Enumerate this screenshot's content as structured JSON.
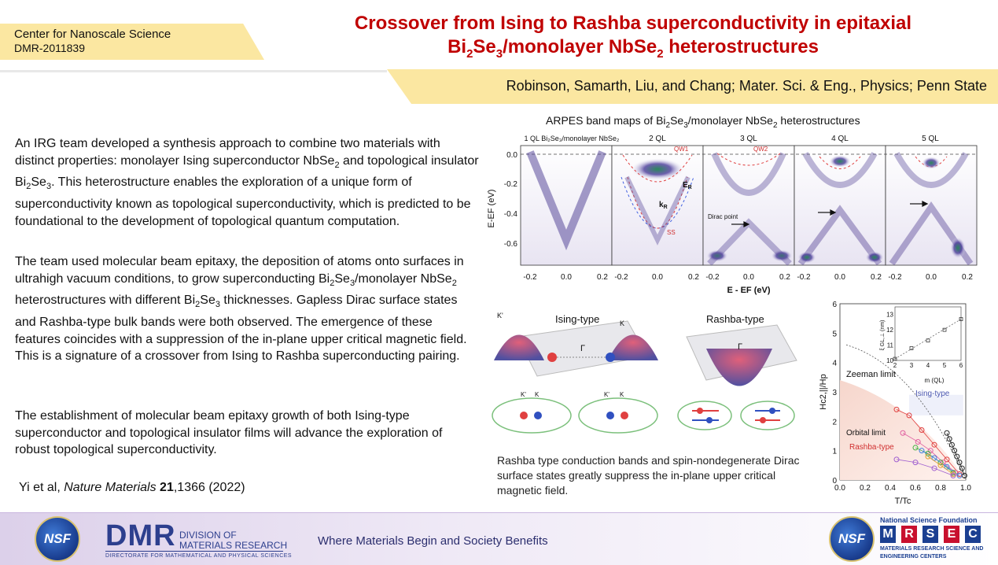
{
  "header": {
    "center_line1": "Center for Nanoscale Science",
    "center_line2": "DMR-2011839",
    "title_line1": "Crossover from Ising to Rashba superconductivity in epitaxial",
    "title_line2": {
      "a": "Bi",
      "s1": "2",
      "b": "Se",
      "s2": "3",
      "c": "/monolayer NbSe",
      "s3": "2",
      "d": " heterostructures"
    },
    "authors": "Robinson, Samarth, Liu, and Chang; Mater. Sci. & Eng., Physics; Penn State"
  },
  "body": {
    "para1": {
      "t1": "An IRG team developed a synthesis approach to combine two materials with distinct properties: monolayer Ising superconductor NbSe",
      "s1": "2",
      "t2": " and topological insulator Bi",
      "s2": "2",
      "t3": "Se",
      "s3": "3",
      "t4": ". This heterostructure enables the exploration of a unique form of superconductivity known as topological superconductivity, which is predicted to be foundational to the development of topological quantum computation."
    },
    "para2": {
      "t1": "The team used molecular beam epitaxy, the deposition of atoms onto surfaces in ultrahigh vacuum conditions, to grow superconducting Bi",
      "s1": "2",
      "t2": "Se",
      "s2": "3",
      "t3": "/monolayer NbSe",
      "s3": "2",
      "t4": " heterostructures  with different Bi",
      "s4": "2",
      "t5": "Se",
      "s5": "3",
      "t6": " thicknesses. Gapless Dirac surface states and Rashba-type bulk bands were both observed. The emergence of these features coincides with a suppression of the in-plane upper critical magnetic field. This is a signature of a crossover from Ising to Rashba superconducting pairing."
    },
    "para3": "The establishment of molecular beam epitaxy growth of both Ising-type superconductor and topological insulator films will advance the exploration of robust topological superconductivity.",
    "citation": {
      "authors": "Yi et al, ",
      "journal": "Nature Materials",
      "volume": "21",
      "rest": ",1366 (2022)"
    }
  },
  "arpes": {
    "title": {
      "a": "ARPES band maps of Bi",
      "s1": "2",
      "b": "Se",
      "s2": "3",
      "c": "/monolayer NbSe",
      "s3": "2",
      "d": " heterostructures"
    },
    "panels": [
      "1 QL Bi₂Se₃/monolayer NbSe₂",
      "2 QL",
      "3 QL",
      "4 QL",
      "5 QL"
    ],
    "ylabel": "E-EF (eV)",
    "yticks": [
      "0.0",
      "-0.2",
      "-0.4",
      "-0.6"
    ],
    "xticks": [
      "-0.2",
      "0.0",
      "0.2"
    ],
    "xlabel": "E - EF (eV)",
    "annotations": {
      "qw1": "QW1",
      "qw2": "QW2",
      "er": "E",
      "er_sub": "R",
      "kr": "k",
      "kr_sub": "R",
      "ss": "SS",
      "dirac": "Dirac point"
    }
  },
  "schematic": {
    "ising_label": "Ising-type",
    "rashba_label": "Rashba-type",
    "k_prime": "K'",
    "k": "K",
    "gamma": "Γ"
  },
  "caption": "Rashba type conduction bands and spin-nondegenerate Dirac surface states greatly suppress the in-plane upper critical magnetic field.",
  "chart_data": {
    "type": "scatter",
    "xlabel": "T/Tc",
    "ylabel": "Hc2,||/Hp",
    "xlim": [
      0.0,
      1.0
    ],
    "ylim": [
      0,
      6
    ],
    "xticks": [
      "0.0",
      "0.2",
      "0.4",
      "0.6",
      "0.8",
      "1.0"
    ],
    "yticks": [
      "0",
      "1",
      "2",
      "3",
      "4",
      "5",
      "6"
    ],
    "labels": {
      "zeeman": "Zeeman limit",
      "ising": "Ising-type",
      "orbital": "Orbital limit",
      "rashba": "Rashba-type"
    },
    "series": [
      {
        "color": "#222222",
        "x": [
          0.85,
          0.87,
          0.89,
          0.91,
          0.93,
          0.95,
          0.97,
          0.99
        ],
        "y": [
          1.6,
          1.4,
          1.2,
          1.0,
          0.8,
          0.6,
          0.4,
          0.15
        ]
      },
      {
        "color": "#e04040",
        "x": [
          0.45,
          0.55,
          0.65,
          0.75,
          0.85,
          0.95
        ],
        "y": [
          2.4,
          2.2,
          1.7,
          1.2,
          0.7,
          0.2
        ]
      },
      {
        "color": "#e060a0",
        "x": [
          0.5,
          0.62,
          0.72,
          0.82,
          0.92
        ],
        "y": [
          1.6,
          1.3,
          1.0,
          0.6,
          0.25
        ]
      },
      {
        "color": "#40b040",
        "x": [
          0.6,
          0.7,
          0.8,
          0.9
        ],
        "y": [
          1.1,
          0.9,
          0.6,
          0.25
        ]
      },
      {
        "color": "#4080e0",
        "x": [
          0.65,
          0.75,
          0.85,
          0.95
        ],
        "y": [
          1.0,
          0.75,
          0.45,
          0.15
        ]
      },
      {
        "color": "#e0a030",
        "x": [
          0.7,
          0.8,
          0.9
        ],
        "y": [
          0.8,
          0.5,
          0.2
        ]
      },
      {
        "color": "#a060d0",
        "x": [
          0.45,
          0.6,
          0.75,
          0.9
        ],
        "y": [
          0.7,
          0.6,
          0.4,
          0.15
        ]
      }
    ],
    "inset": {
      "xlabel": "m (QL)",
      "ylabel": "ξ GL,⊥ (nm)",
      "xticks": [
        "2",
        "3",
        "4",
        "5",
        "6"
      ],
      "yticks": [
        "10",
        "11",
        "12",
        "13"
      ],
      "xlim": [
        2,
        6
      ],
      "ylim": [
        10,
        13.5
      ],
      "x": [
        2,
        3,
        4,
        5,
        6
      ],
      "y": [
        10.1,
        10.8,
        11.3,
        12.0,
        12.7
      ]
    }
  },
  "footer": {
    "tagline": "Where Materials Begin and Society Benefits",
    "nsf": "NSF",
    "dmr": "DMR",
    "dmr_line1": "DIVISION OF",
    "dmr_line2": "MATERIALS RESEARCH",
    "dmr_line3": "DIRECTORATE FOR MATHEMATICAL AND PHYSICAL SCIENCES",
    "nsf_name": "National Science Foundation",
    "mrsec_letters": [
      "M",
      "R",
      "S",
      "E",
      "C"
    ],
    "mrsec_line1": "MATERIALS RESEARCH SCIENCE AND",
    "mrsec_line2": "ENGINEERING CENTERS"
  }
}
